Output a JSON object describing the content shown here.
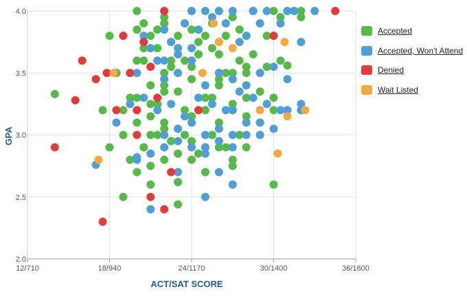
{
  "chart_data": {
    "type": "scatter",
    "xlabel": "ACT/SAT SCORE",
    "ylabel": "GPA",
    "x_ticks": [
      "12/710",
      "18/940",
      "24/1170",
      "30/1400",
      "36/1600"
    ],
    "x_tick_values": [
      12,
      18,
      24,
      30,
      36
    ],
    "y_ticks": [
      "2.0",
      "2.5",
      "3.0",
      "3.5",
      "4.0"
    ],
    "y_tick_values": [
      2.0,
      2.5,
      3.0,
      3.5,
      4.0
    ],
    "xlim": [
      12,
      36
    ],
    "ylim": [
      2.0,
      4.0
    ],
    "grid": true,
    "legend_position": "right",
    "series": [
      {
        "name": "Accepted",
        "color": "#56b948",
        "x": [
          14,
          17.5,
          18,
          18.5,
          19,
          20,
          20.5,
          21,
          21.5,
          22,
          22.5,
          23,
          23.5,
          24,
          24.5,
          25,
          25.5,
          26,
          26.5,
          27,
          27.5,
          28,
          28.5,
          29,
          29.5,
          30,
          30.5,
          31,
          31.5,
          32,
          18.5,
          19.5,
          20.5,
          21.5,
          22.5,
          23.5,
          24.5,
          25.5,
          26.5,
          27.5,
          28.5,
          29.5,
          30.5,
          19,
          20,
          21,
          22,
          23,
          24,
          25,
          26,
          27,
          28,
          29,
          30,
          31,
          18,
          19,
          20,
          21,
          22,
          23,
          24,
          25,
          26,
          27,
          28,
          29,
          19.5,
          20.5,
          21.5,
          22.5,
          23.5,
          24.5,
          25.5,
          26.5,
          27.5,
          20,
          21,
          22,
          23,
          24,
          25,
          26,
          27,
          28,
          19,
          21,
          23,
          25,
          27,
          29,
          20,
          22,
          24,
          26,
          28,
          21,
          23,
          25,
          27,
          22,
          24,
          26,
          20.5,
          22.5,
          24.5,
          21.5,
          23.5,
          25.5,
          22,
          24,
          21,
          23,
          25,
          22,
          24,
          26,
          30,
          31,
          32,
          20,
          22,
          24,
          26,
          28,
          30
        ],
        "y": [
          3.33,
          3.2,
          3.8,
          3.5,
          3.0,
          4.0,
          3.9,
          3.8,
          3.85,
          3.95,
          3.75,
          3.8,
          3.9,
          4.0,
          3.85,
          3.8,
          3.9,
          4.0,
          3.8,
          3.95,
          3.85,
          3.8,
          4.0,
          3.9,
          3.8,
          4.0,
          3.95,
          4.0,
          4.0,
          4.0,
          3.5,
          3.3,
          3.6,
          3.7,
          3.55,
          3.6,
          3.65,
          3.7,
          3.5,
          3.6,
          3.65,
          3.55,
          3.6,
          3.2,
          3.3,
          3.25,
          3.4,
          3.35,
          3.45,
          3.3,
          3.4,
          3.5,
          3.3,
          3.35,
          3.3,
          3.56,
          2.9,
          3.0,
          3.1,
          3.15,
          3.1,
          3.05,
          3.15,
          3.2,
          3.1,
          3.2,
          3.15,
          3.2,
          2.8,
          2.9,
          3.0,
          2.95,
          3.0,
          2.85,
          3.0,
          2.9,
          3.0,
          2.7,
          2.75,
          2.8,
          2.85,
          2.8,
          2.9,
          2.95,
          2.8,
          2.9,
          2.5,
          2.6,
          2.62,
          2.7,
          2.75,
          3.1,
          3.6,
          3.5,
          3.55,
          3.45,
          3.5,
          3.4,
          3.35,
          3.3,
          3.25,
          3.9,
          3.85,
          3.75,
          3.7,
          3.6,
          3.75,
          3.25,
          3.2,
          3.3,
          3.35,
          3.15,
          3.0,
          2.44,
          2.7,
          3.05,
          2.95,
          2.9,
          2.6,
          3.2,
          3.95,
          3.85,
          3.9,
          3.6,
          3.65,
          3.55,
          3.2
        ]
      },
      {
        "name": "Accepted, Won't Attend",
        "color": "#4f9fd6",
        "x": [
          17,
          18.5,
          19.5,
          20.5,
          21,
          21.5,
          22,
          22.5,
          23,
          23.5,
          24,
          24.5,
          25,
          25.5,
          26,
          26.5,
          27,
          27.5,
          28,
          28.5,
          29,
          29.5,
          30,
          30.5,
          31,
          31.5,
          32,
          33,
          20,
          21,
          22,
          23,
          24,
          25,
          26,
          27,
          28,
          29,
          30,
          31,
          32,
          20.5,
          21.5,
          22.5,
          23.5,
          24.5,
          25.5,
          26.5,
          27.5,
          28.5,
          29.5,
          22,
          23,
          24,
          25,
          26,
          27,
          28,
          29,
          30,
          31,
          32,
          20,
          21,
          22,
          23,
          24,
          25,
          26,
          27,
          28,
          21,
          23,
          25,
          27,
          29,
          22,
          24,
          26,
          28,
          25,
          20,
          23,
          26,
          27,
          30.5
        ],
        "y": [
          2.76,
          3.1,
          3.25,
          3.8,
          3.7,
          3.6,
          3.85,
          3.75,
          3.7,
          3.9,
          4.0,
          3.85,
          4.0,
          3.95,
          4.0,
          3.9,
          4.0,
          3.75,
          3.8,
          4.0,
          3.9,
          4.0,
          3.8,
          3.9,
          4.0,
          4.0,
          3.75,
          4.0,
          3.5,
          3.55,
          3.45,
          3.5,
          3.6,
          3.4,
          3.5,
          3.45,
          3.4,
          3.5,
          3.55,
          3.45,
          3.2,
          3.3,
          3.2,
          3.25,
          3.15,
          3.3,
          3.25,
          3.2,
          3.35,
          3.3,
          3.25,
          3.0,
          3.05,
          3.1,
          3.0,
          3.05,
          3.0,
          3.1,
          3.0,
          3.05,
          3.2,
          3.25,
          2.8,
          2.85,
          2.9,
          2.95,
          2.9,
          2.85,
          2.95,
          2.9,
          3.0,
          2.4,
          2.7,
          2.9,
          3.2,
          3.1,
          3.6,
          3.7,
          3.5,
          3.4,
          2.5,
          2.82,
          3.65,
          2.7,
          2.6,
          3.2
        ]
      },
      {
        "name": "Denied",
        "color": "#e03c3c",
        "x": [
          14,
          15.5,
          16,
          17,
          17.5,
          17.8,
          18.5,
          19,
          19.5,
          20,
          20.5,
          21,
          21.5,
          22,
          22,
          24.5,
          30,
          34.5,
          20,
          22.5,
          21
        ],
        "y": [
          2.9,
          3.28,
          3.6,
          3.45,
          2.3,
          3.5,
          3.2,
          3.8,
          3.5,
          3.2,
          3.75,
          2.5,
          3.3,
          4.0,
          2.4,
          3.2,
          3.8,
          4.0,
          3.0,
          2.7,
          3.55
        ]
      },
      {
        "name": "Wait Listed",
        "color": "#f5a742",
        "x": [
          17.2,
          18.3,
          24.8,
          25.6,
          29,
          30.3,
          31,
          30.8,
          32.3,
          27,
          26
        ],
        "y": [
          2.8,
          3.5,
          3.5,
          3.9,
          3.2,
          2.85,
          3.15,
          3.75,
          3.2,
          3.7,
          3.75
        ]
      }
    ]
  }
}
